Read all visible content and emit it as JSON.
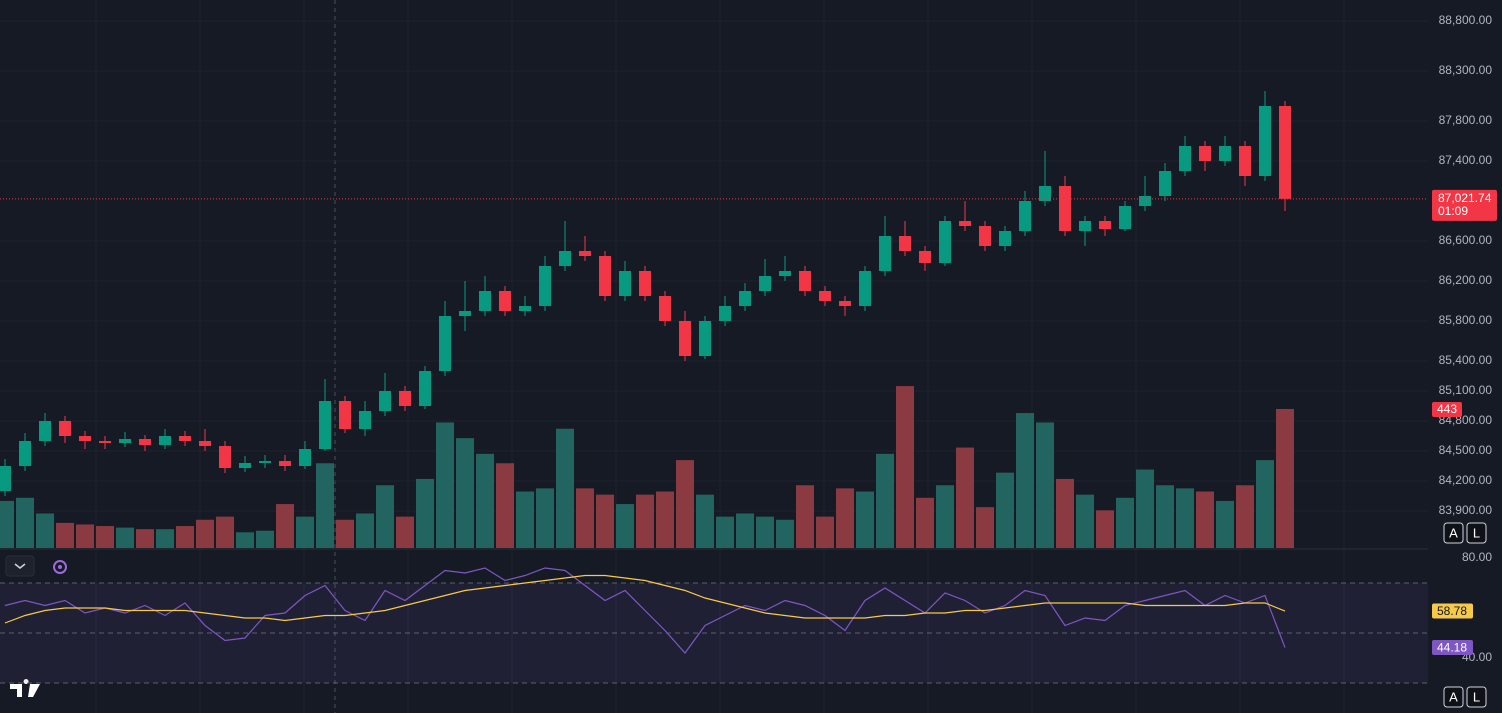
{
  "chart_data": [
    {
      "type": "candlestick",
      "open": [
        84100,
        84350,
        84600,
        84800,
        84650,
        84600,
        84580,
        84620,
        84560,
        84650,
        84600,
        84550,
        84330,
        84380,
        84400,
        84350,
        84520,
        85000,
        84720,
        84900,
        85100,
        84950,
        85300,
        85850,
        85900,
        86100,
        85900,
        85950,
        86350,
        86500,
        86450,
        86050,
        86300,
        86050,
        85800,
        85450,
        85800,
        85950,
        86100,
        86250,
        86300,
        86100,
        86000,
        85950,
        86300,
        86650,
        86500,
        86380,
        86800,
        86750,
        86550,
        86700,
        87000,
        87150,
        86700,
        86800,
        86720,
        86950,
        87050,
        87300,
        87550,
        87400,
        87550,
        87250,
        87950
      ],
      "high": [
        84420,
        84680,
        84880,
        84850,
        84700,
        84650,
        84690,
        84660,
        84720,
        84700,
        84720,
        84600,
        84450,
        84460,
        84460,
        84600,
        85220,
        85050,
        85000,
        85280,
        85150,
        85350,
        86000,
        86200,
        86250,
        86150,
        86050,
        86450,
        86800,
        86650,
        86500,
        86400,
        86350,
        86100,
        85900,
        85850,
        86050,
        86180,
        86420,
        86450,
        86350,
        86150,
        86050,
        86350,
        86850,
        86800,
        86550,
        86850,
        87000,
        86800,
        86750,
        87100,
        87500,
        87250,
        86850,
        86850,
        87000,
        87250,
        87380,
        87650,
        87600,
        87650,
        87600,
        88100,
        88000
      ],
      "low": [
        84050,
        84300,
        84550,
        84580,
        84520,
        84520,
        84540,
        84500,
        84520,
        84550,
        84500,
        84280,
        84290,
        84330,
        84300,
        84320,
        84500,
        84680,
        84650,
        84850,
        84900,
        84920,
        85250,
        85700,
        85850,
        85850,
        85850,
        85900,
        86300,
        86400,
        86000,
        86000,
        86000,
        85750,
        85400,
        85420,
        85750,
        85900,
        86050,
        86200,
        86050,
        85950,
        85850,
        85900,
        86250,
        86450,
        86300,
        86350,
        86700,
        86500,
        86500,
        86650,
        86950,
        86650,
        86550,
        86650,
        86700,
        86900,
        87000,
        87250,
        87300,
        87350,
        87150,
        87200,
        86900
      ],
      "close": [
        84350,
        84600,
        84800,
        84650,
        84600,
        84580,
        84620,
        84560,
        84650,
        84600,
        84550,
        84330,
        84380,
        84400,
        84350,
        84520,
        85000,
        84720,
        84900,
        85100,
        84950,
        85300,
        85850,
        85900,
        86100,
        85900,
        85950,
        86350,
        86500,
        86450,
        86050,
        86300,
        86050,
        85800,
        85450,
        85800,
        85950,
        86100,
        86250,
        86300,
        86100,
        86000,
        85950,
        86300,
        86650,
        86500,
        86380,
        86800,
        86750,
        86550,
        86700,
        87000,
        87150,
        86700,
        86800,
        86720,
        86950,
        87050,
        87300,
        87550,
        87400,
        87550,
        87250,
        87950,
        87021.74
      ],
      "colors": {
        "up": "#089981",
        "down": "#f23645"
      },
      "ylim": [
        83530,
        89010
      ],
      "yticks": [
        {
          "value": 88800,
          "label": "88,800.00"
        },
        {
          "value": 88300,
          "label": "88,300.00"
        },
        {
          "value": 87800,
          "label": "87,800.00"
        },
        {
          "value": 87400,
          "label": "87,400.00"
        },
        {
          "value": 86600,
          "label": "86,600.00"
        },
        {
          "value": 86200,
          "label": "86,200.00"
        },
        {
          "value": 85800,
          "label": "85,800.00"
        },
        {
          "value": 85400,
          "label": "85,400.00"
        },
        {
          "value": 85100,
          "label": "85,100.00"
        },
        {
          "value": 84800,
          "label": "84,800.00"
        },
        {
          "value": 84500,
          "label": "84,500.00"
        },
        {
          "value": 84200,
          "label": "84,200.00"
        },
        {
          "value": 83900,
          "label": "83,900.00"
        }
      ],
      "grid": true,
      "last_price_label": "87,021.74",
      "countdown": "01:09",
      "volume": {
        "values": [
          150,
          160,
          110,
          80,
          75,
          70,
          65,
          60,
          60,
          70,
          90,
          100,
          50,
          55,
          140,
          100,
          270,
          90,
          110,
          200,
          100,
          220,
          400,
          350,
          300,
          270,
          180,
          190,
          380,
          190,
          170,
          140,
          170,
          180,
          280,
          170,
          100,
          110,
          100,
          90,
          200,
          100,
          190,
          180,
          300,
          516,
          160,
          200,
          320,
          130,
          240,
          430,
          400,
          220,
          170,
          120,
          160,
          250,
          200,
          190,
          180,
          150,
          200,
          280,
          443
        ],
        "ylim": [
          0,
          1746
        ],
        "up_color": "#22645f",
        "down_color": "#8a3a40"
      }
    },
    {
      "type": "line",
      "series": [
        {
          "color": "#7e57c2",
          "values": [
            61,
            63,
            61,
            63,
            58,
            60,
            58,
            61,
            57,
            62,
            53,
            47,
            48,
            57,
            58,
            65,
            69,
            59,
            55,
            67,
            63,
            69,
            75,
            74,
            76,
            71,
            73,
            76,
            75,
            69,
            63,
            67,
            59,
            51,
            42,
            53,
            57,
            61,
            59,
            63,
            61,
            57,
            51,
            63,
            68,
            63,
            58,
            66,
            63,
            58,
            61,
            67,
            65,
            53,
            56,
            55,
            61,
            63,
            65,
            67,
            61,
            65,
            62,
            65,
            44.18
          ]
        },
        {
          "color": "#f7c948",
          "values": [
            54,
            57,
            59,
            60,
            60,
            60,
            59,
            59,
            59,
            59,
            58,
            57,
            56,
            56,
            55,
            56,
            57,
            57,
            58,
            59,
            61,
            63,
            65,
            67,
            68,
            69,
            70,
            71,
            72,
            73,
            73,
            72,
            71,
            69,
            67,
            64,
            62,
            60,
            58,
            57,
            56,
            56,
            56,
            56,
            57,
            57,
            58,
            58,
            59,
            59,
            60,
            61,
            62,
            62,
            62,
            62,
            62,
            61,
            61,
            61,
            61,
            61,
            62,
            62,
            58.78
          ]
        }
      ],
      "ylim": [
        18,
        83.2
      ],
      "yticks": [
        {
          "value": 80,
          "label": "80.00"
        },
        {
          "value": 40,
          "label": "40.00"
        }
      ],
      "bands": [
        70,
        50,
        30
      ]
    }
  ],
  "ui": {
    "buttons": [
      "A",
      "L",
      "A",
      "L"
    ]
  }
}
